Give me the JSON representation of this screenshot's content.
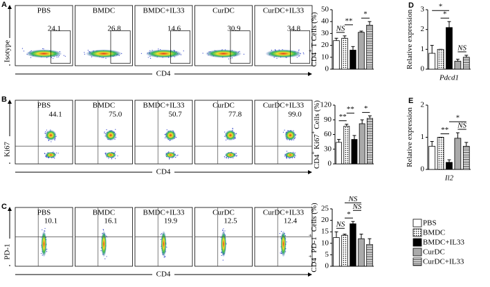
{
  "panels": [
    {
      "letter": "A",
      "ylabel": "Isotype",
      "xlabel": "CD4",
      "groups": [
        "PBS",
        "BMDC",
        "BMDC+IL33",
        "CurDC",
        "CurDC+IL33"
      ],
      "percents": [
        "24.1",
        "26.8",
        "14.6",
        "30.9",
        "34.8"
      ]
    },
    {
      "letter": "B",
      "ylabel": "Ki67",
      "xlabel": "CD4",
      "groups": [
        "PBS",
        "BMDC",
        "BMDC+IL33",
        "CurDC",
        "CurDC+IL33"
      ],
      "percents": [
        "44.1",
        "75.0",
        "50.7",
        "77.8",
        "99.0"
      ]
    },
    {
      "letter": "C",
      "ylabel": "PD-1",
      "xlabel": "CD4",
      "groups": [
        "PBS",
        "BMDC",
        "BMDC+IL33",
        "CurDC",
        "CurDC+IL33"
      ],
      "percents": [
        "10.1",
        "16.1",
        "19.9",
        "12.5",
        "12.4"
      ]
    }
  ],
  "legend": {
    "labels": [
      "PBS",
      "BMDC",
      "BMDC+IL33",
      "CurDC",
      "CurDC+IL33"
    ],
    "fills": [
      "white",
      "dots",
      "black",
      "gray",
      "hlines"
    ]
  },
  "chart_data": [
    {
      "type": "bar",
      "ylabel": [
        {
          "text": "CD4"
        },
        {
          "text": "+",
          "sup": true
        },
        {
          "text": " T Cells (%)"
        }
      ],
      "values": [
        24,
        26,
        16,
        31,
        37
      ],
      "errors": [
        2,
        2,
        3,
        1,
        3
      ],
      "ylim": [
        0,
        50
      ],
      "yticks": [
        0,
        10,
        20,
        30,
        40,
        50
      ],
      "annotations": [
        {
          "text": "NS",
          "pair": [
            0,
            1
          ]
        },
        {
          "text": "**",
          "pair": [
            1,
            2
          ]
        },
        {
          "text": "*",
          "pair": [
            3,
            4
          ]
        }
      ]
    },
    {
      "type": "bar",
      "ylabel": [
        {
          "text": "CD4"
        },
        {
          "text": "+",
          "sup": true
        },
        {
          "text": " Ki67"
        },
        {
          "text": "+",
          "sup": true
        },
        {
          "text": " Cells (%)"
        }
      ],
      "values": [
        44,
        77,
        50,
        82,
        93
      ],
      "errors": [
        6,
        4,
        8,
        8,
        5
      ],
      "ylim": [
        0,
        120
      ],
      "yticks": [
        0,
        30,
        60,
        90,
        120
      ],
      "annotations": [
        {
          "text": "**",
          "pair": [
            0,
            1
          ]
        },
        {
          "text": "**",
          "pair": [
            1,
            2
          ]
        },
        {
          "text": "*",
          "pair": [
            3,
            4
          ]
        }
      ]
    },
    {
      "type": "bar",
      "ylabel": [
        {
          "text": "CD4"
        },
        {
          "text": "+",
          "sup": true
        },
        {
          "text": " PD-1"
        },
        {
          "text": "+",
          "sup": true
        },
        {
          "text": " Cells (%)"
        }
      ],
      "values": [
        12.5,
        13.5,
        18.5,
        12,
        9.5
      ],
      "errors": [
        2.5,
        0.5,
        1,
        2,
        2.5
      ],
      "ylim": [
        0,
        25
      ],
      "yticks": [
        0,
        5,
        10,
        15,
        20,
        25
      ],
      "annotations": [
        {
          "text": "NS",
          "pair": [
            0,
            1
          ]
        },
        {
          "text": "*",
          "pair": [
            1,
            2
          ]
        },
        {
          "text": "NS",
          "pair": [
            2,
            3
          ]
        },
        {
          "text": "NS",
          "pair": [
            1,
            3
          ]
        }
      ]
    },
    {
      "type": "bar",
      "panel": "D",
      "ylabel": [
        {
          "text": "Relative expression"
        }
      ],
      "xlabel": "Pdcd1",
      "values": [
        0.8,
        1.0,
        2.1,
        0.4,
        0.6
      ],
      "errors": [
        0.4,
        0,
        0.3,
        0.1,
        0.1
      ],
      "ylim": [
        0,
        3
      ],
      "yticks": [
        0,
        1,
        2,
        3
      ],
      "annotations": [
        {
          "text": "*",
          "pair": [
            1,
            2
          ]
        },
        {
          "text": "*",
          "pair": [
            0,
            2
          ]
        },
        {
          "text": "NS",
          "pair": [
            3,
            4
          ]
        }
      ]
    },
    {
      "type": "bar",
      "panel": "E",
      "ylabel": [
        {
          "text": "Relative expression"
        }
      ],
      "xlabel": "Il2",
      "values": [
        0.72,
        1.0,
        0.22,
        0.97,
        0.72
      ],
      "errors": [
        0.15,
        0,
        0.08,
        0.17,
        0.12
      ],
      "ylim": [
        0,
        2
      ],
      "yticks": [
        0,
        1,
        2
      ],
      "annotations": [
        {
          "text": "**",
          "pair": [
            1,
            2
          ]
        },
        {
          "text": "NS",
          "pair": [
            3,
            4
          ]
        },
        {
          "text": "*",
          "pair": [
            2,
            4
          ]
        }
      ]
    }
  ]
}
